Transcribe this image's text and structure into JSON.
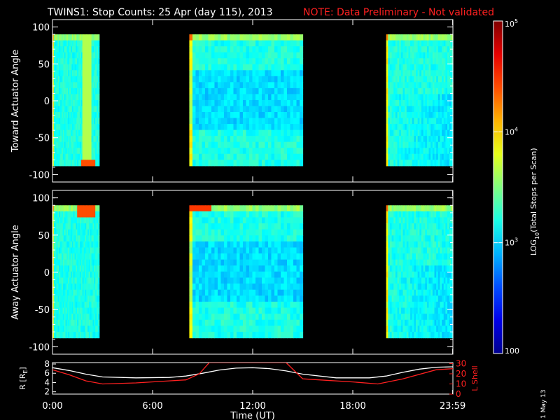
{
  "header": {
    "title": "TWINS1: Stop Counts: 25 Apr (day 115), 2013",
    "note": "NOTE: Data Preliminary - Not validated"
  },
  "side_stamp": "1 May 13",
  "colors": {
    "background": "#000000",
    "note": "#ff2020",
    "r_line": "#ffffff",
    "lshell_line": "#ff2020",
    "colormap": [
      "#00008f",
      "#0000ff",
      "#0080ff",
      "#00ffff",
      "#80ff80",
      "#ffff00",
      "#ff8000",
      "#ff0000",
      "#800000"
    ]
  },
  "chart_data": [
    {
      "type": "heatmap",
      "panel": "toward",
      "ylabel": "Toward Actuator Angle",
      "ylim": [
        -110,
        110
      ],
      "yticks": [
        100,
        50,
        0,
        -50,
        -100
      ],
      "xlim_hours": [
        0,
        24
      ],
      "data_blocks_hours": [
        [
          0,
          2.8
        ],
        [
          8.2,
          15.0
        ],
        [
          20.0,
          24.0
        ]
      ],
      "angle_range": [
        -88,
        90
      ],
      "features": [
        {
          "hour_range": [
            1.8,
            2.3
          ],
          "level": 0.55,
          "note": "enhanced band"
        },
        {
          "hour_range": [
            1.7,
            2.6
          ],
          "angle_range": [
            -88,
            -80
          ],
          "level": 0.8
        }
      ]
    },
    {
      "type": "heatmap",
      "panel": "away",
      "ylabel": "Away Actuator Angle",
      "ylim": [
        -110,
        110
      ],
      "yticks": [
        100,
        50,
        0,
        -50,
        -100
      ],
      "xlim_hours": [
        0,
        24
      ],
      "data_blocks_hours": [
        [
          0,
          2.8
        ],
        [
          8.2,
          15.0
        ],
        [
          20.0,
          24.0
        ]
      ],
      "angle_range": [
        -88,
        90
      ],
      "features": [
        {
          "hour_range": [
            1.5,
            2.6
          ],
          "angle_range": [
            75,
            90
          ],
          "level": 0.8
        },
        {
          "hour_range": [
            8.2,
            9.6
          ],
          "angle_range": [
            80,
            90
          ],
          "level": 0.82
        }
      ]
    },
    {
      "type": "line",
      "panel": "ephemeris",
      "xlabel": "Time (UT)",
      "xticks": [
        "0:00",
        "6:00",
        "12:00",
        "18:00",
        "23:59"
      ],
      "xtick_hours": [
        0,
        6,
        12,
        18,
        23.983
      ],
      "left_axis": {
        "label": "R [R_E]",
        "label_main": "R [R",
        "label_sub": "E",
        "label_close": "]",
        "ticks": [
          8,
          6,
          4,
          2
        ],
        "ylim": [
          1.5,
          8.3
        ]
      },
      "right_axis": {
        "label": "L Shell",
        "ticks": [
          30,
          20,
          10,
          0
        ],
        "ylim": [
          0,
          31
        ]
      },
      "series": [
        {
          "name": "R",
          "axis": "left",
          "x": [
            0,
            1,
            2,
            3,
            5,
            7,
            8,
            9,
            10,
            11,
            12,
            13,
            14,
            15,
            17,
            19,
            20,
            21,
            22,
            23,
            24
          ],
          "values": [
            7.2,
            6.6,
            5.8,
            5.2,
            5.0,
            5.1,
            5.4,
            6.0,
            6.7,
            7.1,
            7.2,
            7.0,
            6.5,
            5.8,
            5.0,
            5.0,
            5.4,
            6.2,
            6.9,
            7.3,
            7.4
          ]
        },
        {
          "name": "L Shell",
          "axis": "right",
          "x": [
            0,
            1,
            2,
            3,
            5,
            7,
            8,
            8.8,
            9.4,
            14,
            15,
            16,
            18,
            19.5,
            21,
            23,
            24
          ],
          "values": [
            24,
            19,
            13,
            10,
            11,
            13,
            14,
            20,
            31,
            31,
            15,
            14,
            12,
            10,
            15,
            24,
            25
          ]
        }
      ]
    }
  ],
  "colorbar": {
    "label_main": "LOG",
    "label_sub": "10",
    "label_rest": "(Total Stops per Scan)",
    "ticks": [
      {
        "base": "10",
        "exp": "5",
        "level": 1.0
      },
      {
        "base": "10",
        "exp": "4",
        "level": 0.6667
      },
      {
        "base": "10",
        "exp": "3",
        "level": 0.3333
      },
      {
        "base": "100",
        "exp": "",
        "level": 0.0
      }
    ]
  }
}
